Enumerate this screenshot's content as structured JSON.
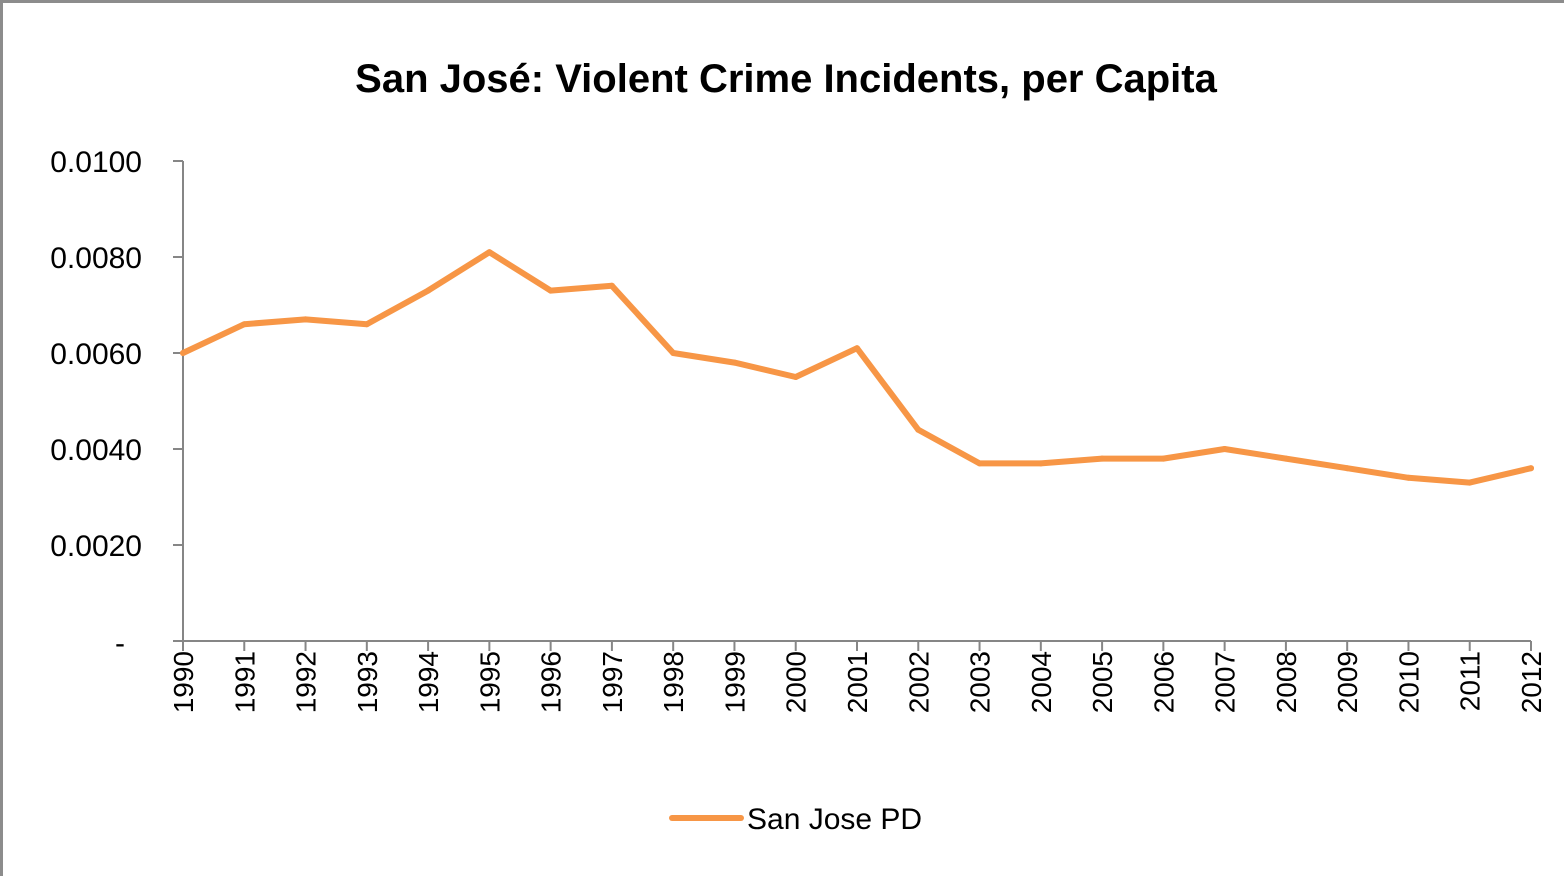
{
  "chart_data": {
    "type": "line",
    "title": "San José: Violent Crime Incidents, per Capita",
    "xlabel": "",
    "ylabel": "",
    "ylim": [
      0,
      0.01
    ],
    "y_ticks": [
      "-",
      "0.0020",
      "0.0040",
      "0.0060",
      "0.0080",
      "0.0100"
    ],
    "y_tick_values": [
      0,
      0.002,
      0.004,
      0.006,
      0.008,
      0.01
    ],
    "categories": [
      "1990",
      "1991",
      "1992",
      "1993",
      "1994",
      "1995",
      "1996",
      "1997",
      "1998",
      "1999",
      "2000",
      "2001",
      "2002",
      "2003",
      "2004",
      "2005",
      "2006",
      "2007",
      "2008",
      "2009",
      "2010",
      "2011",
      "2012"
    ],
    "series": [
      {
        "name": "San Jose PD",
        "color": "#f79646",
        "values": [
          0.006,
          0.0066,
          0.0067,
          0.0066,
          0.0073,
          0.0081,
          0.0073,
          0.0074,
          0.006,
          0.0058,
          0.0055,
          0.0061,
          0.0044,
          0.0037,
          0.0037,
          0.0038,
          0.0038,
          0.004,
          0.0038,
          0.0036,
          0.0034,
          0.0033,
          0.0036
        ]
      }
    ],
    "grid": false,
    "legend_position": "bottom"
  }
}
